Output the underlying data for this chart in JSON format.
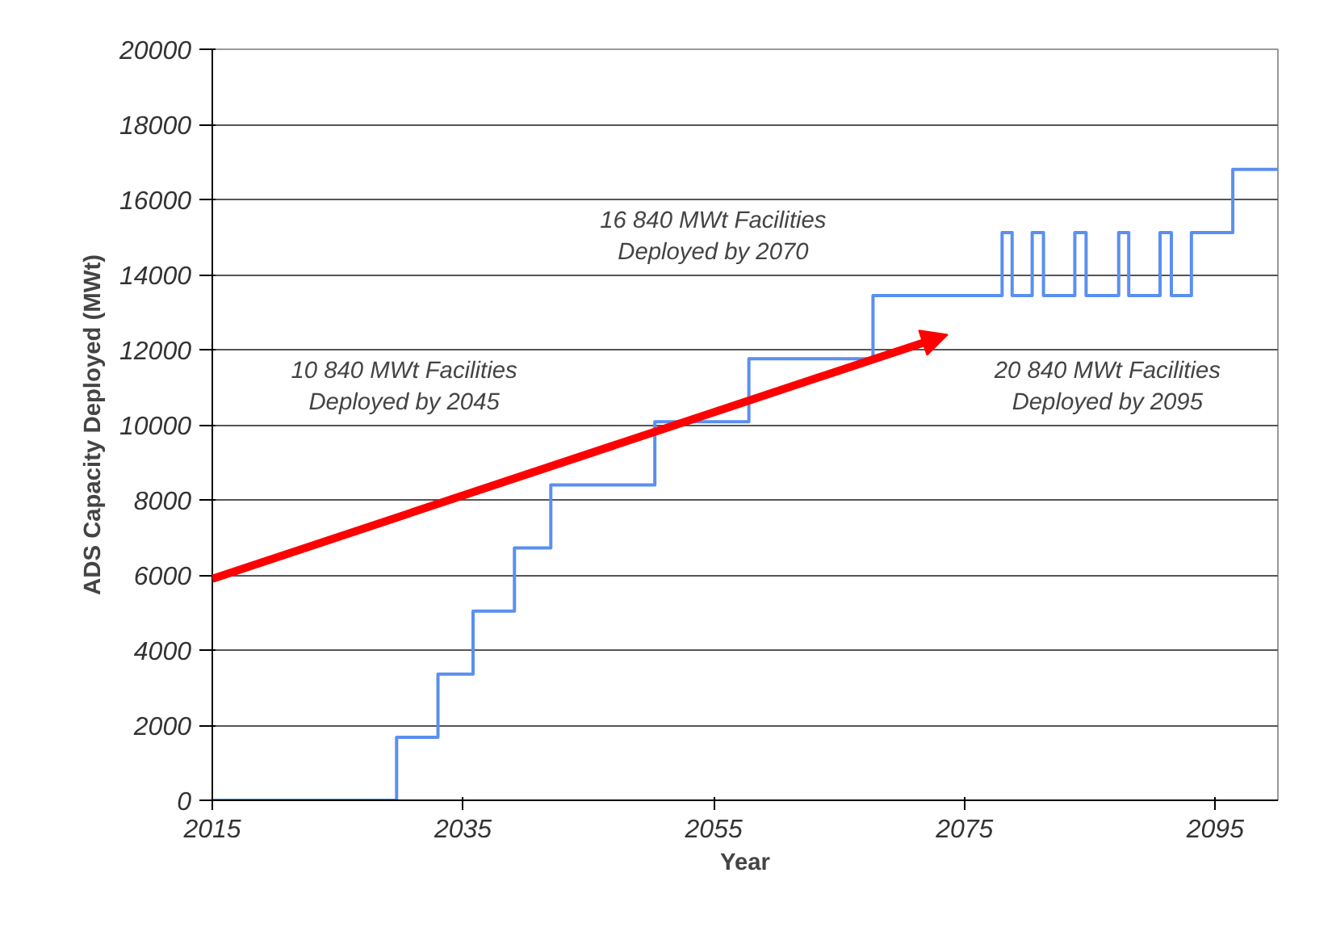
{
  "chart_data": {
    "type": "step",
    "xlabel": "Year",
    "ylabel": "ADS Capacity Deployed (MWt)",
    "x": [
      2015,
      2029.7,
      2033,
      2035.8,
      2039.1,
      2042,
      2050.3,
      2057.8,
      2067.7,
      2078,
      2078.8,
      2080.4,
      2081.3,
      2083.8,
      2084.7,
      2087.3,
      2088.1,
      2090.6,
      2091.5,
      2093.1,
      2096.4,
      2100
    ],
    "series": [
      {
        "color": "#5b8ff0",
        "values": [
          0,
          1680,
          3360,
          5040,
          6720,
          8400,
          10080,
          11760,
          13440,
          15120,
          13440,
          15120,
          13440,
          15120,
          13440,
          15120,
          13440,
          15120,
          13440,
          15120,
          16800,
          16800
        ]
      }
    ],
    "xlim": [
      2015,
      2100
    ],
    "xticks": [
      2015,
      2035,
      2055,
      2075,
      2095
    ],
    "ylim": [
      0,
      20000
    ],
    "yticks": [
      0,
      2000,
      4000,
      6000,
      8000,
      10000,
      12000,
      14000,
      16000,
      18000,
      20000
    ],
    "grid": "y",
    "annotations": [
      "10 840 MWt Facilities\nDeployed by 2045",
      "16 840 MWt Facilities\nDeployed by 2070",
      "20 840 MWt Facilities\nDeployed by 2095"
    ]
  }
}
